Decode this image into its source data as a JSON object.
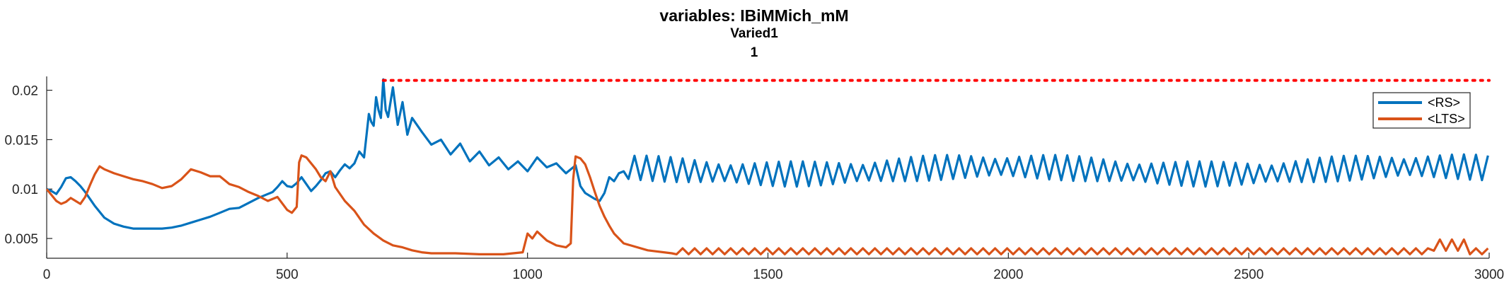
{
  "chart_data": {
    "type": "line",
    "title": "variables: IBiMMich_mM",
    "subtitle_lines": [
      "Varied1",
      "1"
    ],
    "xlabel": "",
    "ylabel": "",
    "xlim": [
      0,
      3000
    ],
    "ylim": [
      0.003,
      0.0214
    ],
    "x_ticks": [
      0,
      500,
      1000,
      1500,
      2000,
      2500,
      3000
    ],
    "x_tick_labels": [
      "0",
      "500",
      "1000",
      "1500",
      "2000",
      "2500",
      "3000"
    ],
    "y_ticks": [
      0.005,
      0.01,
      0.015,
      0.02
    ],
    "y_tick_labels": [
      "0.005",
      "0.01",
      "0.015",
      "0.02"
    ],
    "grid": false,
    "legend_position": "top-right",
    "threshold": {
      "y": 0.021,
      "x_start": 700,
      "x_end": 3000,
      "color": "#FF0000",
      "style": "dotted"
    },
    "series": [
      {
        "name": "<RS>",
        "color": "#0072BD",
        "x": [
          0,
          10,
          20,
          30,
          40,
          50,
          60,
          70,
          80,
          90,
          100,
          120,
          140,
          160,
          180,
          200,
          220,
          240,
          260,
          280,
          300,
          320,
          340,
          360,
          380,
          400,
          420,
          440,
          460,
          470,
          480,
          490,
          500,
          510,
          520,
          530,
          540,
          550,
          560,
          570,
          580,
          590,
          600,
          610,
          620,
          630,
          640,
          650,
          660,
          670,
          675,
          680,
          685,
          690,
          695,
          700,
          705,
          710,
          720,
          730,
          740,
          750,
          760,
          780,
          800,
          820,
          840,
          860,
          880,
          900,
          920,
          940,
          960,
          980,
          1000,
          1020,
          1040,
          1060,
          1080,
          1100,
          1110,
          1120,
          1130,
          1140,
          1150,
          1160,
          1170,
          1180,
          1190,
          1200
        ],
        "values": [
          0.01,
          0.0098,
          0.0095,
          0.0102,
          0.0111,
          0.0112,
          0.0108,
          0.0103,
          0.0097,
          0.009,
          0.0083,
          0.0071,
          0.0065,
          0.0062,
          0.006,
          0.006,
          0.006,
          0.006,
          0.0061,
          0.0063,
          0.0066,
          0.0069,
          0.0072,
          0.0076,
          0.008,
          0.0081,
          0.0086,
          0.0091,
          0.0095,
          0.0097,
          0.0102,
          0.0108,
          0.0103,
          0.0102,
          0.0106,
          0.0112,
          0.0105,
          0.0098,
          0.0103,
          0.0109,
          0.0116,
          0.0118,
          0.0112,
          0.0119,
          0.0125,
          0.0121,
          0.0126,
          0.0138,
          0.0132,
          0.0176,
          0.0168,
          0.0164,
          0.0193,
          0.018,
          0.0172,
          0.0211,
          0.018,
          0.0173,
          0.0203,
          0.0165,
          0.0188,
          0.0155,
          0.0172,
          0.0158,
          0.0145,
          0.015,
          0.0135,
          0.0146,
          0.0128,
          0.0138,
          0.0124,
          0.0132,
          0.012,
          0.0128,
          0.0118,
          0.0132,
          0.0122,
          0.0126,
          0.0116,
          0.0124,
          0.0103,
          0.0096,
          0.0093,
          0.009,
          0.0088,
          0.0096,
          0.0112,
          0.0108,
          0.0116,
          0.0118
        ]
      },
      {
        "name": "<LTS>",
        "color": "#D95319",
        "x": [
          0,
          10,
          20,
          30,
          40,
          50,
          60,
          70,
          80,
          90,
          100,
          110,
          120,
          140,
          160,
          180,
          200,
          220,
          240,
          260,
          280,
          300,
          320,
          340,
          360,
          380,
          400,
          420,
          440,
          460,
          480,
          500,
          510,
          520,
          525,
          530,
          540,
          550,
          560,
          570,
          580,
          590,
          600,
          620,
          640,
          660,
          680,
          700,
          720,
          740,
          760,
          780,
          800,
          850,
          900,
          950,
          990,
          1000,
          1010,
          1020,
          1040,
          1060,
          1080,
          1090,
          1095,
          1100,
          1110,
          1120,
          1130,
          1140,
          1150,
          1160,
          1170,
          1180,
          1200,
          1250,
          1300
        ],
        "values": [
          0.01,
          0.0094,
          0.0088,
          0.0085,
          0.0087,
          0.0091,
          0.0088,
          0.0085,
          0.0092,
          0.0104,
          0.0115,
          0.0123,
          0.012,
          0.0116,
          0.0113,
          0.011,
          0.0108,
          0.0105,
          0.0101,
          0.0103,
          0.011,
          0.012,
          0.0117,
          0.0113,
          0.0113,
          0.0105,
          0.0102,
          0.0097,
          0.0093,
          0.0088,
          0.0092,
          0.0079,
          0.0076,
          0.0082,
          0.0127,
          0.0134,
          0.0132,
          0.0126,
          0.012,
          0.0112,
          0.0108,
          0.0118,
          0.0102,
          0.0088,
          0.0078,
          0.0064,
          0.0055,
          0.0048,
          0.0043,
          0.0041,
          0.0038,
          0.0036,
          0.0035,
          0.0035,
          0.0034,
          0.0034,
          0.0036,
          0.0055,
          0.005,
          0.0057,
          0.0048,
          0.0043,
          0.0041,
          0.0045,
          0.011,
          0.0133,
          0.0131,
          0.0125,
          0.0112,
          0.0097,
          0.0083,
          0.0072,
          0.0063,
          0.0055,
          0.0045,
          0.0038,
          0.0035
        ]
      }
    ]
  }
}
